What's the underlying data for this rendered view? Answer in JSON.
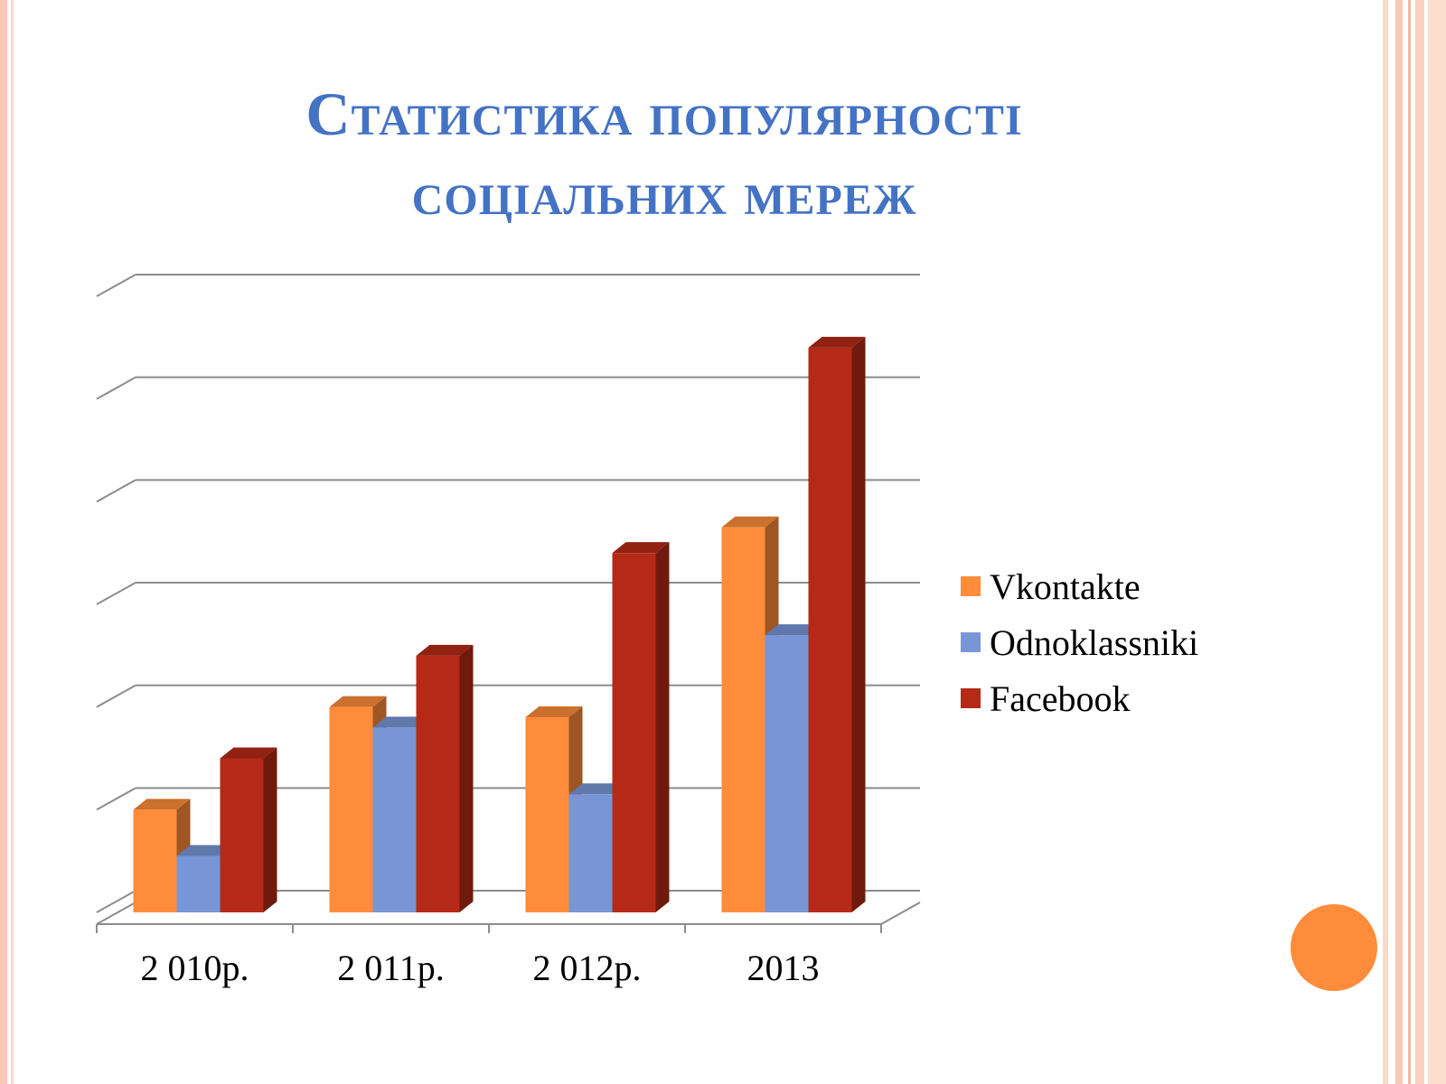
{
  "slide": {
    "title_line1": "Статистика популярності",
    "title_line2": "соціальних мереж"
  },
  "colors": {
    "title": "#4472c4",
    "frame": "#f9c9b5",
    "accent_dot": "#ff8c3a"
  },
  "chart_data": {
    "type": "bar",
    "style": "3d-clustered-column",
    "categories": [
      "2 010р.",
      "2 011р.",
      "2 012р.",
      "2013"
    ],
    "series": [
      {
        "name": "Vkontakte",
        "values": [
          2.0,
          4.0,
          3.8,
          7.5
        ],
        "color": "#ff8c3a"
      },
      {
        "name": "Odnoklassniki",
        "values": [
          1.1,
          3.6,
          2.3,
          5.4
        ],
        "color": "#7896d6"
      },
      {
        "name": "Facebook",
        "values": [
          3.0,
          5.0,
          7.0,
          11.0
        ],
        "color": "#b52a17"
      }
    ],
    "ylim": [
      0,
      12
    ],
    "y_tick_labels_shown": false,
    "grid": true,
    "legend_position": "right"
  }
}
